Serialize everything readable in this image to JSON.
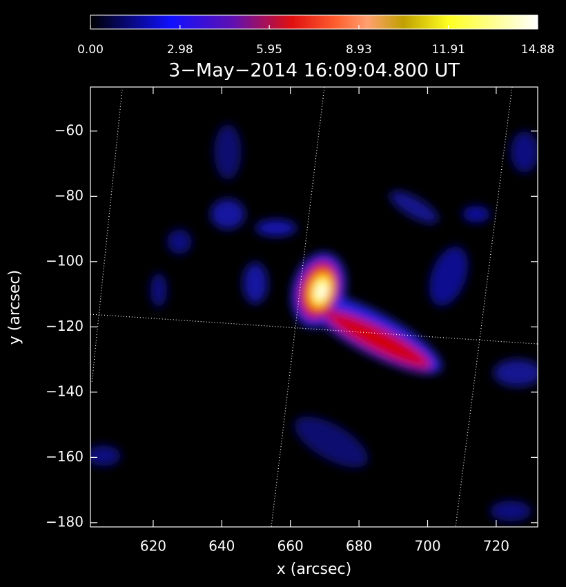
{
  "chart_data": {
    "type": "image",
    "title": "3−May−2014 16:09:04.800 UT",
    "x_label": "x (arcsec)",
    "y_label": "y (arcsec)",
    "xlim": [
      601.7,
      732.1
    ],
    "ylim": [
      -181.3,
      -46.5
    ],
    "xticks": [
      620,
      640,
      660,
      680,
      700,
      720
    ],
    "yticks": [
      {
        "value": -60,
        "label": "−60"
      },
      {
        "value": -80,
        "label": "−80"
      },
      {
        "value": -100,
        "label": "−100"
      },
      {
        "value": -120,
        "label": "−120"
      },
      {
        "value": -140,
        "label": "−140"
      },
      {
        "value": -160,
        "label": "−160"
      },
      {
        "value": -180,
        "label": "−180"
      }
    ],
    "colorbar": {
      "lim": [
        0,
        14.88
      ],
      "ticks": [
        {
          "value": 0,
          "label": "0.00"
        },
        2.98,
        5.95,
        8.93,
        11.91,
        14.88
      ]
    }
  }
}
